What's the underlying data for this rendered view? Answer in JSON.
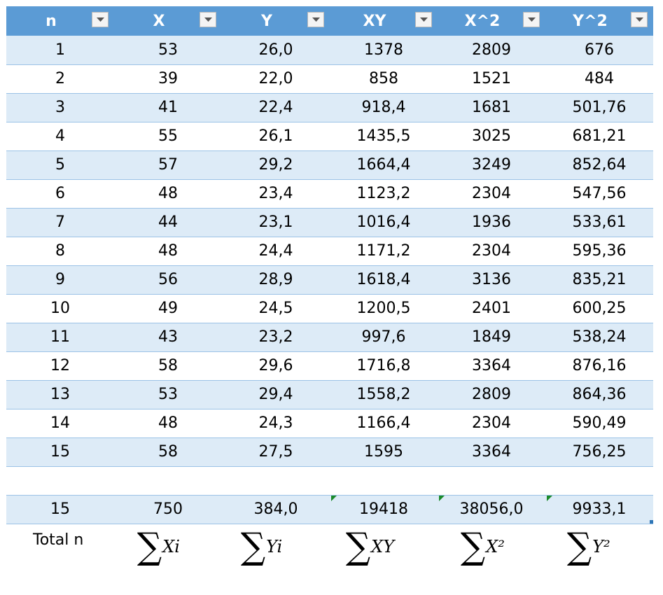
{
  "headers": [
    "n",
    "X",
    "Y",
    "XY",
    "X^2",
    "Y^2"
  ],
  "rows": [
    [
      "1",
      "53",
      "26,0",
      "1378",
      "2809",
      "676"
    ],
    [
      "2",
      "39",
      "22,0",
      "858",
      "1521",
      "484"
    ],
    [
      "3",
      "41",
      "22,4",
      "918,4",
      "1681",
      "501,76"
    ],
    [
      "4",
      "55",
      "26,1",
      "1435,5",
      "3025",
      "681,21"
    ],
    [
      "5",
      "57",
      "29,2",
      "1664,4",
      "3249",
      "852,64"
    ],
    [
      "6",
      "48",
      "23,4",
      "1123,2",
      "2304",
      "547,56"
    ],
    [
      "7",
      "44",
      "23,1",
      "1016,4",
      "1936",
      "533,61"
    ],
    [
      "8",
      "48",
      "24,4",
      "1171,2",
      "2304",
      "595,36"
    ],
    [
      "9",
      "56",
      "28,9",
      "1618,4",
      "3136",
      "835,21"
    ],
    [
      "10",
      "49",
      "24,5",
      "1200,5",
      "2401",
      "600,25"
    ],
    [
      "11",
      "43",
      "23,2",
      "997,6",
      "1849",
      "538,24"
    ],
    [
      "12",
      "58",
      "29,6",
      "1716,8",
      "3364",
      "876,16"
    ],
    [
      "13",
      "53",
      "29,4",
      "1558,2",
      "2809",
      "864,36"
    ],
    [
      "14",
      "48",
      "24,3",
      "1166,4",
      "2304",
      "590,49"
    ],
    [
      "15",
      "58",
      "27,5",
      "1595",
      "3364",
      "756,25"
    ]
  ],
  "totals": [
    "15",
    "750",
    "384,0",
    "19418",
    "38056,0",
    "9933,1"
  ],
  "footer": {
    "label": "Total n",
    "sums": [
      "Xi",
      "Yi",
      "XY",
      "X²",
      "Y²"
    ],
    "sigma": "∑"
  },
  "colors": {
    "header_bg": "#5b9bd5",
    "band_bg": "#ddebf7",
    "border": "#9bc2e6",
    "error_marker": "#1a8a2a"
  }
}
